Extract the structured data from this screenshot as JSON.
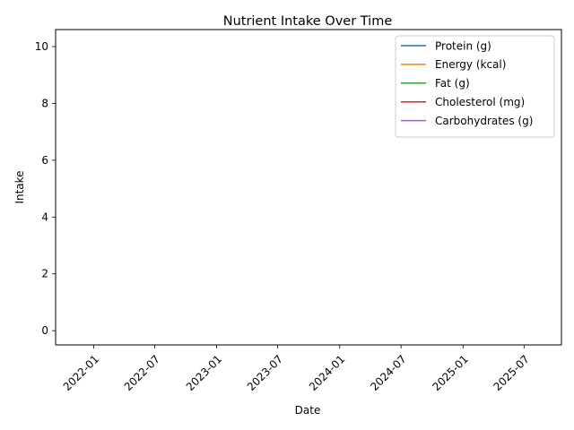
{
  "chart_data": {
    "type": "line",
    "title": "Nutrient Intake Over Time",
    "xlabel": "Date",
    "ylabel": "Intake",
    "x_ticks": [
      "2022-01",
      "2022-07",
      "2023-01",
      "2023-07",
      "2024-01",
      "2024-07",
      "2025-01",
      "2025-07"
    ],
    "y_ticks": [
      0,
      2,
      4,
      6,
      8,
      10
    ],
    "xlim": [
      "2021-09-10",
      "2025-10-20"
    ],
    "ylim": [
      -0.5,
      10.6
    ],
    "grid": false,
    "legend_position": "upper-right",
    "series": [
      {
        "name": "Protein (g)",
        "color": "#1f77b4",
        "values": []
      },
      {
        "name": "Energy (kcal)",
        "color": "#ff7f0e",
        "values": []
      },
      {
        "name": "Fat (g)",
        "color": "#2ca02c",
        "values": []
      },
      {
        "name": "Cholesterol (mg)",
        "color": "#d62728",
        "values": []
      },
      {
        "name": "Carbohydrates (g)",
        "color": "#9467bd",
        "values": []
      }
    ]
  }
}
